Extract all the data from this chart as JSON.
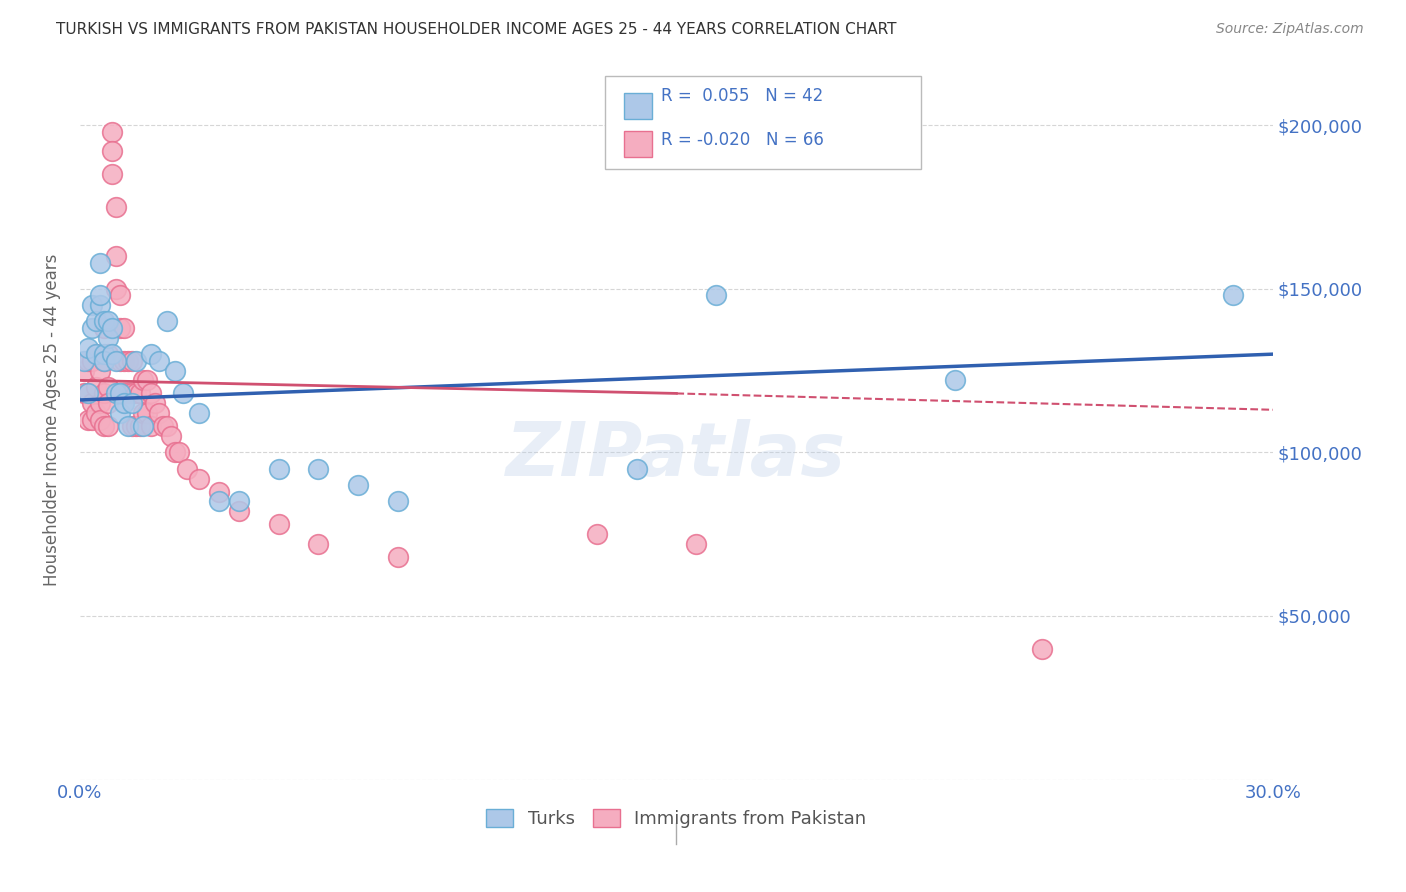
{
  "title": "TURKISH VS IMMIGRANTS FROM PAKISTAN HOUSEHOLDER INCOME AGES 25 - 44 YEARS CORRELATION CHART",
  "source": "Source: ZipAtlas.com",
  "ylabel": "Householder Income Ages 25 - 44 years",
  "legend_turks_r": "R =  0.055",
  "legend_turks_n": "N = 42",
  "legend_pak_r": "R = -0.020",
  "legend_pak_n": "N = 66",
  "turks_color": "#adc8e8",
  "pak_color": "#f5adc0",
  "turks_edge": "#6aaed6",
  "pak_edge": "#e87090",
  "trend_turks_color": "#3060b0",
  "trend_pak_color": "#d05070",
  "title_color": "#333333",
  "right_label_color": "#4472c4",
  "watermark": "ZIPatlas",
  "xlim": [
    0.0,
    0.3
  ],
  "ylim": [
    0,
    220000
  ],
  "yticks": [
    0,
    50000,
    100000,
    150000,
    200000
  ],
  "ytick_labels": [
    "",
    "$50,000",
    "$100,000",
    "$150,000",
    "$200,000"
  ],
  "turks_x": [
    0.001,
    0.002,
    0.002,
    0.003,
    0.003,
    0.004,
    0.004,
    0.005,
    0.005,
    0.005,
    0.006,
    0.006,
    0.006,
    0.007,
    0.007,
    0.008,
    0.008,
    0.009,
    0.009,
    0.01,
    0.01,
    0.011,
    0.012,
    0.013,
    0.014,
    0.016,
    0.018,
    0.02,
    0.022,
    0.024,
    0.026,
    0.03,
    0.035,
    0.04,
    0.05,
    0.06,
    0.07,
    0.08,
    0.14,
    0.16,
    0.22,
    0.29
  ],
  "turks_y": [
    128000,
    132000,
    118000,
    145000,
    138000,
    140000,
    130000,
    145000,
    158000,
    148000,
    130000,
    140000,
    128000,
    135000,
    140000,
    138000,
    130000,
    128000,
    118000,
    118000,
    112000,
    115000,
    108000,
    115000,
    128000,
    108000,
    130000,
    128000,
    140000,
    125000,
    118000,
    112000,
    85000,
    85000,
    95000,
    95000,
    90000,
    85000,
    95000,
    148000,
    122000,
    148000
  ],
  "pak_x": [
    0.001,
    0.001,
    0.002,
    0.002,
    0.002,
    0.003,
    0.003,
    0.003,
    0.004,
    0.004,
    0.004,
    0.005,
    0.005,
    0.005,
    0.006,
    0.006,
    0.006,
    0.006,
    0.007,
    0.007,
    0.007,
    0.007,
    0.008,
    0.008,
    0.008,
    0.009,
    0.009,
    0.009,
    0.01,
    0.01,
    0.01,
    0.011,
    0.011,
    0.011,
    0.012,
    0.012,
    0.013,
    0.013,
    0.013,
    0.014,
    0.014,
    0.015,
    0.015,
    0.016,
    0.016,
    0.017,
    0.017,
    0.018,
    0.018,
    0.019,
    0.02,
    0.021,
    0.022,
    0.023,
    0.024,
    0.025,
    0.027,
    0.03,
    0.035,
    0.04,
    0.05,
    0.06,
    0.08,
    0.13,
    0.155,
    0.242
  ],
  "pak_y": [
    125000,
    118000,
    128000,
    118000,
    110000,
    128000,
    115000,
    110000,
    130000,
    120000,
    112000,
    125000,
    115000,
    110000,
    138000,
    128000,
    118000,
    108000,
    130000,
    120000,
    115000,
    108000,
    198000,
    192000,
    185000,
    175000,
    160000,
    150000,
    148000,
    138000,
    128000,
    138000,
    128000,
    118000,
    128000,
    118000,
    128000,
    118000,
    108000,
    118000,
    108000,
    118000,
    108000,
    122000,
    112000,
    122000,
    112000,
    118000,
    108000,
    115000,
    112000,
    108000,
    108000,
    105000,
    100000,
    100000,
    95000,
    92000,
    88000,
    82000,
    78000,
    72000,
    68000,
    75000,
    72000,
    40000
  ],
  "trend_turks_x0": 0.0,
  "trend_turks_y0": 116000,
  "trend_turks_x1": 0.3,
  "trend_turks_y1": 130000,
  "trend_pak_solid_x0": 0.0,
  "trend_pak_solid_y0": 122000,
  "trend_pak_solid_x1": 0.15,
  "trend_pak_solid_y1": 118000,
  "trend_pak_dash_x0": 0.15,
  "trend_pak_dash_y0": 118000,
  "trend_pak_dash_x1": 0.3,
  "trend_pak_dash_y1": 113000
}
